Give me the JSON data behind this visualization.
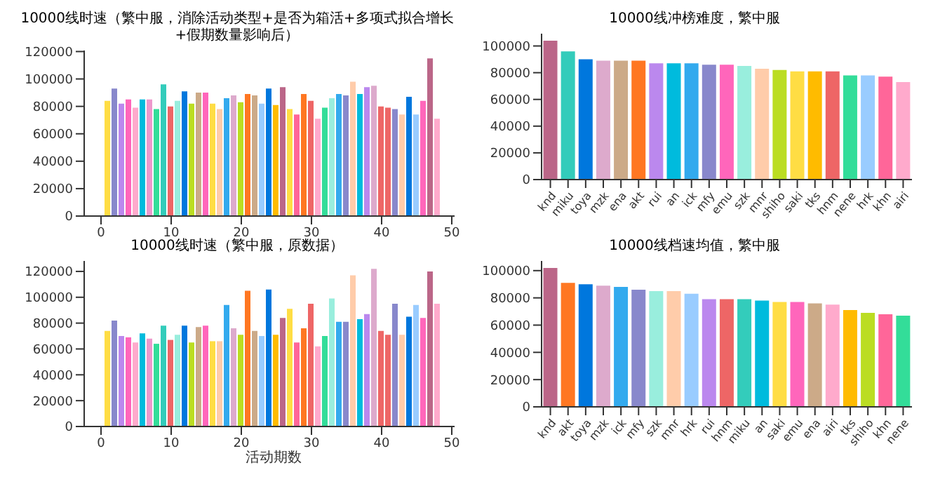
{
  "chart_data": [
    {
      "type": "bar",
      "title": "10000线时速（繁中服，消除活动类型+是否为箱活+多项式拟合增长+假期数量影响后）",
      "x": [
        1,
        2,
        3,
        4,
        5,
        6,
        7,
        8,
        9,
        10,
        11,
        12,
        13,
        14,
        15,
        16,
        17,
        18,
        19,
        20,
        21,
        22,
        23,
        24,
        25,
        26,
        27,
        28,
        29,
        30,
        31,
        32,
        33,
        34,
        35,
        36,
        37,
        38,
        39,
        40,
        41,
        42,
        43,
        44,
        45,
        46,
        47,
        48
      ],
      "values": [
        84000,
        93000,
        82000,
        85000,
        79000,
        85000,
        85000,
        78000,
        96000,
        80000,
        84000,
        91000,
        82000,
        90000,
        90000,
        82000,
        78000,
        86000,
        88000,
        83000,
        89000,
        88000,
        82000,
        93000,
        81000,
        94000,
        78000,
        74000,
        89000,
        84000,
        71000,
        79000,
        86000,
        89000,
        88000,
        98000,
        89000,
        94000,
        95000,
        80000,
        79000,
        78000,
        74000,
        87000,
        74000,
        84000,
        115000,
        71000
      ],
      "colors": [
        "#ffdd44",
        "#8888cc",
        "#bb88ee",
        "#ff66bb",
        "#ffaacc",
        "#00bbdd",
        "#ee99cc",
        "#33dd99",
        "#33ccbb",
        "#ee6666",
        "#99eedd",
        "#0077dd",
        "#bbdd22",
        "#ccaa88",
        "#ff66bb",
        "#ffdd44",
        "#ffccaa",
        "#33aaee",
        "#ddaacc",
        "#bbdd22",
        "#ff7722",
        "#ccaa88",
        "#99ccff",
        "#0077dd",
        "#ffbb00",
        "#bb6688",
        "#ffdd44",
        "#ff6699",
        "#ff7722",
        "#ee6666",
        "#ffaacc",
        "#33dd99",
        "#99eedd",
        "#33aaee",
        "#8888cc",
        "#ffccaa",
        "#00bbdd",
        "#bb88ee",
        "#ddaacc",
        "#ee6666",
        "#ee6666",
        "#8888cc",
        "#ffccaa",
        "#0077dd",
        "#99ccff",
        "#ff66bb",
        "#bb6688",
        "#ffaacc"
      ],
      "xlim": [
        -2.4,
        50.4
      ],
      "xticks": [
        0,
        10,
        20,
        30,
        40,
        50
      ],
      "ylim": [
        0,
        120750
      ],
      "yticks": [
        0,
        20000,
        40000,
        60000,
        80000,
        100000,
        120000
      ],
      "grid": false
    },
    {
      "type": "bar",
      "title": "10000线冲榜难度，繁中服",
      "categories": [
        "knd",
        "miku",
        "toya",
        "mzk",
        "ena",
        "akt",
        "rui",
        "an",
        "ick",
        "mfy",
        "emu",
        "szk",
        "mnr",
        "shiho",
        "saki",
        "tks",
        "hnm",
        "nene",
        "hrk",
        "khn",
        "airi"
      ],
      "values": [
        104000,
        96000,
        90000,
        89000,
        89000,
        89000,
        87000,
        87000,
        87000,
        86000,
        86000,
        85000,
        83000,
        82000,
        81000,
        81000,
        81000,
        78000,
        78000,
        77000,
        73000
      ],
      "colors": [
        "#bb6688",
        "#33ccbb",
        "#0077dd",
        "#ddaacc",
        "#ccaa88",
        "#ff7722",
        "#bb88ee",
        "#00bbdd",
        "#33aaee",
        "#8888cc",
        "#ff66bb",
        "#99eedd",
        "#ffccaa",
        "#bbdd22",
        "#ffdd44",
        "#ffbb00",
        "#ee6666",
        "#33dd99",
        "#99ccff",
        "#ff6699",
        "#ffaacc"
      ],
      "ylim": [
        0,
        109200
      ],
      "yticks": [
        0,
        20000,
        40000,
        60000,
        80000,
        100000
      ],
      "grid": false
    },
    {
      "type": "bar",
      "title": "10000线时速（繁中服，原数据）",
      "xlabel": "活动期数",
      "x": [
        1,
        2,
        3,
        4,
        5,
        6,
        7,
        8,
        9,
        10,
        11,
        12,
        13,
        14,
        15,
        16,
        17,
        18,
        19,
        20,
        21,
        22,
        23,
        24,
        25,
        26,
        27,
        28,
        29,
        30,
        31,
        32,
        33,
        34,
        35,
        36,
        37,
        38,
        39,
        40,
        41,
        42,
        43,
        44,
        45,
        46,
        47,
        48
      ],
      "values": [
        74000,
        82000,
        70000,
        69000,
        65000,
        72000,
        68000,
        64000,
        78000,
        67000,
        71000,
        78000,
        65000,
        77000,
        78000,
        66000,
        66000,
        94000,
        76000,
        71000,
        105000,
        74000,
        70000,
        106000,
        71000,
        84000,
        91000,
        65000,
        76000,
        95000,
        62000,
        70000,
        99000,
        81000,
        81000,
        117000,
        83000,
        87000,
        122000,
        74000,
        71000,
        95000,
        71000,
        85000,
        94000,
        84000,
        120000,
        95000
      ],
      "colors": [
        "#ffdd44",
        "#8888cc",
        "#bb88ee",
        "#ff66bb",
        "#ffaacc",
        "#00bbdd",
        "#ee99cc",
        "#33dd99",
        "#33ccbb",
        "#ee6666",
        "#99eedd",
        "#0077dd",
        "#bbdd22",
        "#ccaa88",
        "#ff66bb",
        "#ffdd44",
        "#ffccaa",
        "#33aaee",
        "#ddaacc",
        "#bbdd22",
        "#ff7722",
        "#ccaa88",
        "#99ccff",
        "#0077dd",
        "#ffbb00",
        "#bb6688",
        "#ffdd44",
        "#ff6699",
        "#ff7722",
        "#ee6666",
        "#ffaacc",
        "#33dd99",
        "#99eedd",
        "#33aaee",
        "#8888cc",
        "#ffccaa",
        "#00bbdd",
        "#bb88ee",
        "#ddaacc",
        "#ee6666",
        "#ee6666",
        "#8888cc",
        "#ffccaa",
        "#0077dd",
        "#99ccff",
        "#ff66bb",
        "#bb6688",
        "#ffaacc"
      ],
      "xlim": [
        -2.4,
        50.4
      ],
      "xticks": [
        0,
        10,
        20,
        30,
        40,
        50
      ],
      "ylim": [
        0,
        128100
      ],
      "yticks": [
        0,
        20000,
        40000,
        60000,
        80000,
        100000,
        120000
      ],
      "grid": false
    },
    {
      "type": "bar",
      "title": "10000线档速均值，繁中服",
      "categories": [
        "knd",
        "akt",
        "toya",
        "mzk",
        "ick",
        "mfy",
        "szk",
        "mnr",
        "hrk",
        "rui",
        "hnm",
        "miku",
        "an",
        "saki",
        "emu",
        "ena",
        "airi",
        "tks",
        "shiho",
        "khn",
        "nene"
      ],
      "values": [
        102000,
        91000,
        90000,
        89000,
        88000,
        86000,
        85000,
        85000,
        83000,
        79000,
        79000,
        79000,
        78000,
        77000,
        77000,
        76000,
        75000,
        71000,
        69000,
        68000,
        67000
      ],
      "colors": [
        "#bb6688",
        "#ff7722",
        "#0077dd",
        "#ddaacc",
        "#33aaee",
        "#8888cc",
        "#99eedd",
        "#ffccaa",
        "#99ccff",
        "#bb88ee",
        "#ee6666",
        "#33ccbb",
        "#00bbdd",
        "#ffdd44",
        "#ff66bb",
        "#ccaa88",
        "#ffaacc",
        "#ffbb00",
        "#bbdd22",
        "#ff6699",
        "#33dd99"
      ],
      "ylim": [
        0,
        107100
      ],
      "yticks": [
        0,
        20000,
        40000,
        60000,
        80000,
        100000
      ],
      "grid": false
    }
  ]
}
